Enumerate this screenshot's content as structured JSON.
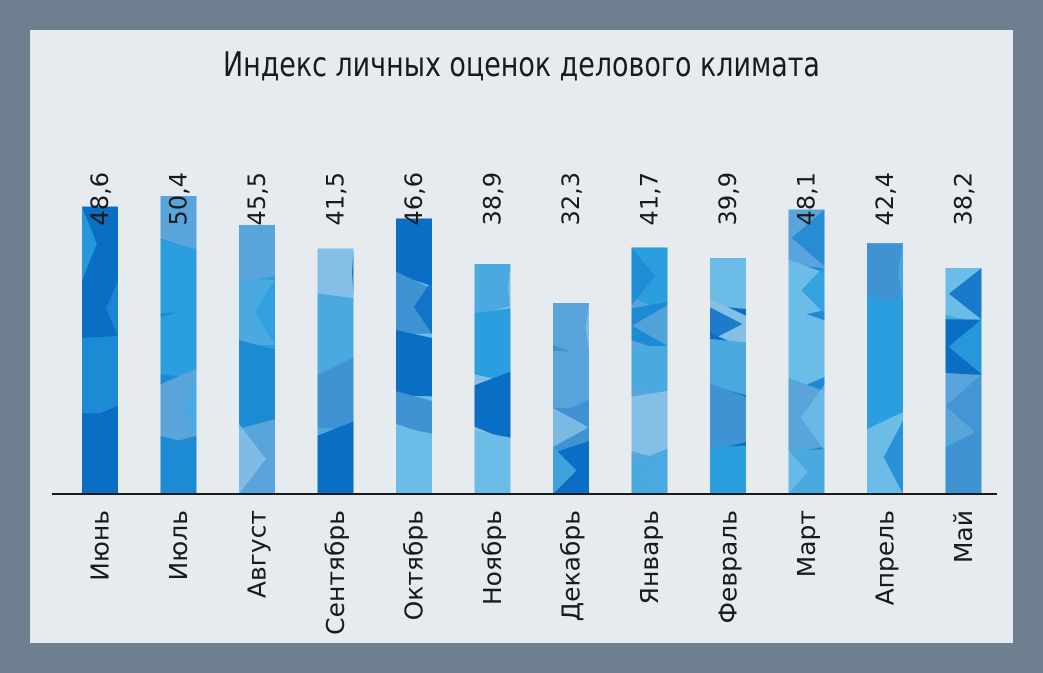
{
  "chart_data": {
    "type": "bar",
    "title": "Индекс личных оценок делового климата",
    "categories": [
      "Июнь",
      "Июль",
      "Август",
      "Сентябрь",
      "Октябрь",
      "Ноябрь",
      "Декабрь",
      "Январь",
      "Февраль",
      "Март",
      "Апрель",
      "Май"
    ],
    "value_labels": [
      "48,6",
      "50,4",
      "45,5",
      "41,5",
      "46,6",
      "38,9",
      "32,3",
      "41,7",
      "39,9",
      "48,1",
      "42,4",
      "38,2"
    ],
    "values": [
      48.6,
      50.4,
      45.5,
      41.5,
      46.6,
      38.9,
      32.3,
      41.7,
      39.9,
      48.1,
      42.4,
      38.2
    ],
    "ylim": [
      0,
      50.4
    ],
    "grid": false,
    "legend": "none",
    "colors": {
      "background": "#6e8090",
      "panel": "#e6ebf0",
      "bar_palette": [
        "#0a6fc4",
        "#1d8ad4",
        "#2b9fdd",
        "#4aaae0",
        "#6cbce8",
        "#86bfe6",
        "#3f93d2",
        "#5aa4dc"
      ]
    }
  }
}
